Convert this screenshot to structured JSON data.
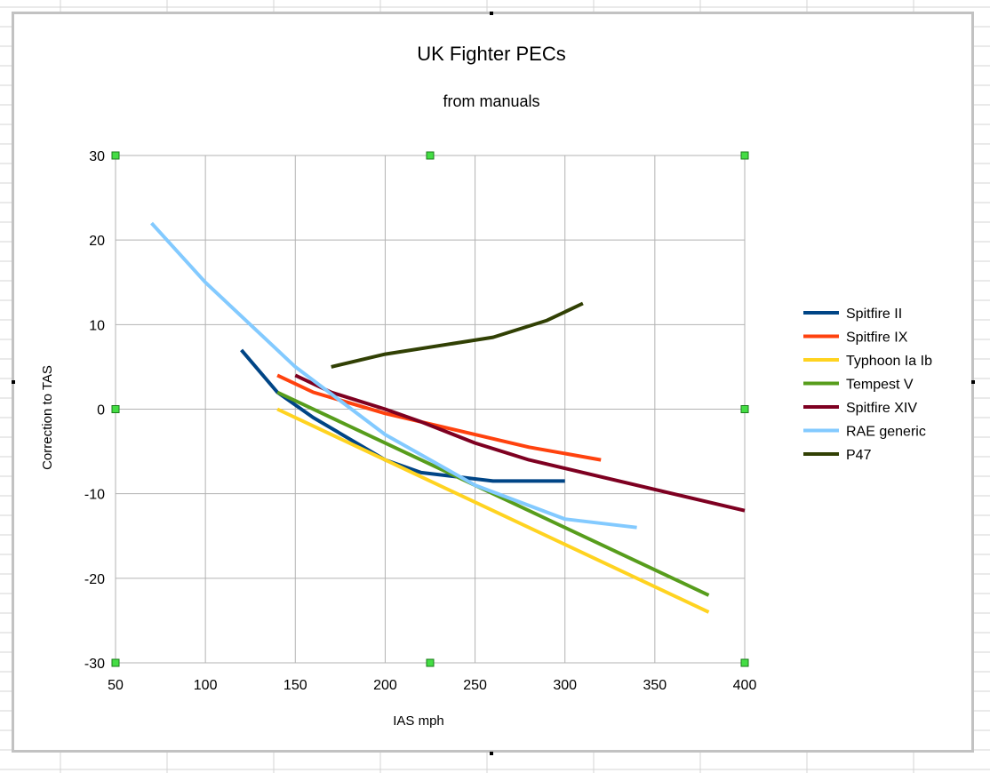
{
  "chart_data": {
    "type": "line",
    "title": "UK Fighter PECs",
    "subtitle": "from manuals",
    "xlabel": "IAS mph",
    "ylabel": "Correction to TAS",
    "xlim": [
      50,
      400
    ],
    "ylim": [
      -30,
      30
    ],
    "xticks": [
      50,
      100,
      150,
      200,
      250,
      300,
      350,
      400
    ],
    "yticks": [
      -30,
      -20,
      -10,
      0,
      10,
      20,
      30
    ],
    "grid": true,
    "legend_position": "right",
    "series": [
      {
        "name": "Spitfire II",
        "color": "#004586",
        "x": [
          120,
          140,
          160,
          200,
          220,
          260,
          300
        ],
        "y": [
          7,
          2,
          -1,
          -6,
          -7.5,
          -8.5,
          -8.5
        ]
      },
      {
        "name": "Spitfire IX",
        "color": "#ff420e",
        "x": [
          140,
          160,
          200,
          220,
          260,
          280,
          320
        ],
        "y": [
          4,
          2,
          -0.5,
          -1.5,
          -3.5,
          -4.5,
          -6
        ]
      },
      {
        "name": "Typhoon  Ia Ib",
        "color": "#ffd320",
        "x": [
          140,
          380
        ],
        "y": [
          0,
          -24
        ]
      },
      {
        "name": "Tempest V",
        "color": "#579d1c",
        "x": [
          140,
          380
        ],
        "y": [
          2,
          -22
        ]
      },
      {
        "name": "Spitfire XIV",
        "color": "#7e0021",
        "x": [
          150,
          170,
          200,
          220,
          250,
          280,
          400
        ],
        "y": [
          4,
          2,
          0,
          -1.5,
          -4,
          -6,
          -12
        ]
      },
      {
        "name": "RAE generic",
        "color": "#83caff",
        "x": [
          70,
          100,
          150,
          175,
          200,
          250,
          300,
          340
        ],
        "y": [
          22,
          15,
          5,
          1,
          -3,
          -9,
          -13,
          -14
        ]
      },
      {
        "name": "P47",
        "color": "#314004",
        "x": [
          170,
          200,
          260,
          290,
          310
        ],
        "y": [
          5,
          6.5,
          8.5,
          10.5,
          12.5
        ]
      }
    ]
  }
}
